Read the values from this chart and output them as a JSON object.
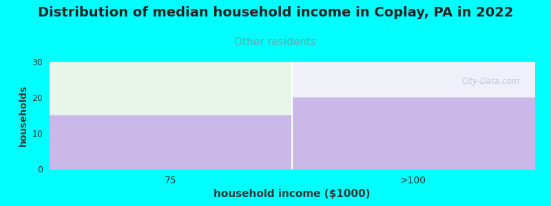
{
  "title": "Distribution of median household income in Coplay, PA in 2022",
  "subtitle": "Other residents",
  "xlabel": "household income ($1000)",
  "ylabel": "households",
  "categories": [
    "75",
    ">100"
  ],
  "values": [
    15,
    20
  ],
  "bar_color": "#c9b8e8",
  "bg_color": "#00ffff",
  "plot_bg_color": "#ffffff",
  "ylim": [
    0,
    30
  ],
  "yticks": [
    0,
    10,
    20,
    30
  ],
  "title_fontsize": 14,
  "subtitle_fontsize": 11,
  "subtitle_color": "#5aacac",
  "xlabel_fontsize": 11,
  "ylabel_fontsize": 10,
  "watermark": "City-Data.com",
  "top_fill_color_left": "#e8f5e9",
  "top_fill_color_right": "#f0f0f8"
}
